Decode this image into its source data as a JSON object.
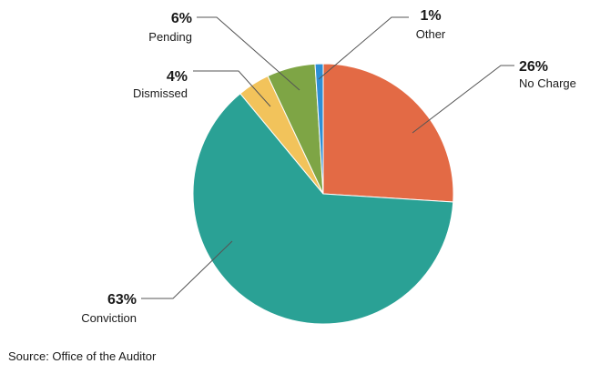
{
  "chart_data": {
    "type": "pie",
    "slices": [
      {
        "label": "No Charge",
        "value": 26,
        "value_label": "26%",
        "color": "#e36a45"
      },
      {
        "label": "Conviction",
        "value": 63,
        "value_label": "63%",
        "color": "#2aa195"
      },
      {
        "label": "Dismissed",
        "value": 4,
        "value_label": "4%",
        "color": "#f2c35b"
      },
      {
        "label": "Pending",
        "value": 6,
        "value_label": "6%",
        "color": "#7ea545"
      },
      {
        "label": "Other",
        "value": 1,
        "value_label": "1%",
        "color": "#2d8fd5"
      }
    ],
    "start": "12 o'clock",
    "direction": "clockwise",
    "legend": "none"
  },
  "source": "Source: Office of the Auditor"
}
